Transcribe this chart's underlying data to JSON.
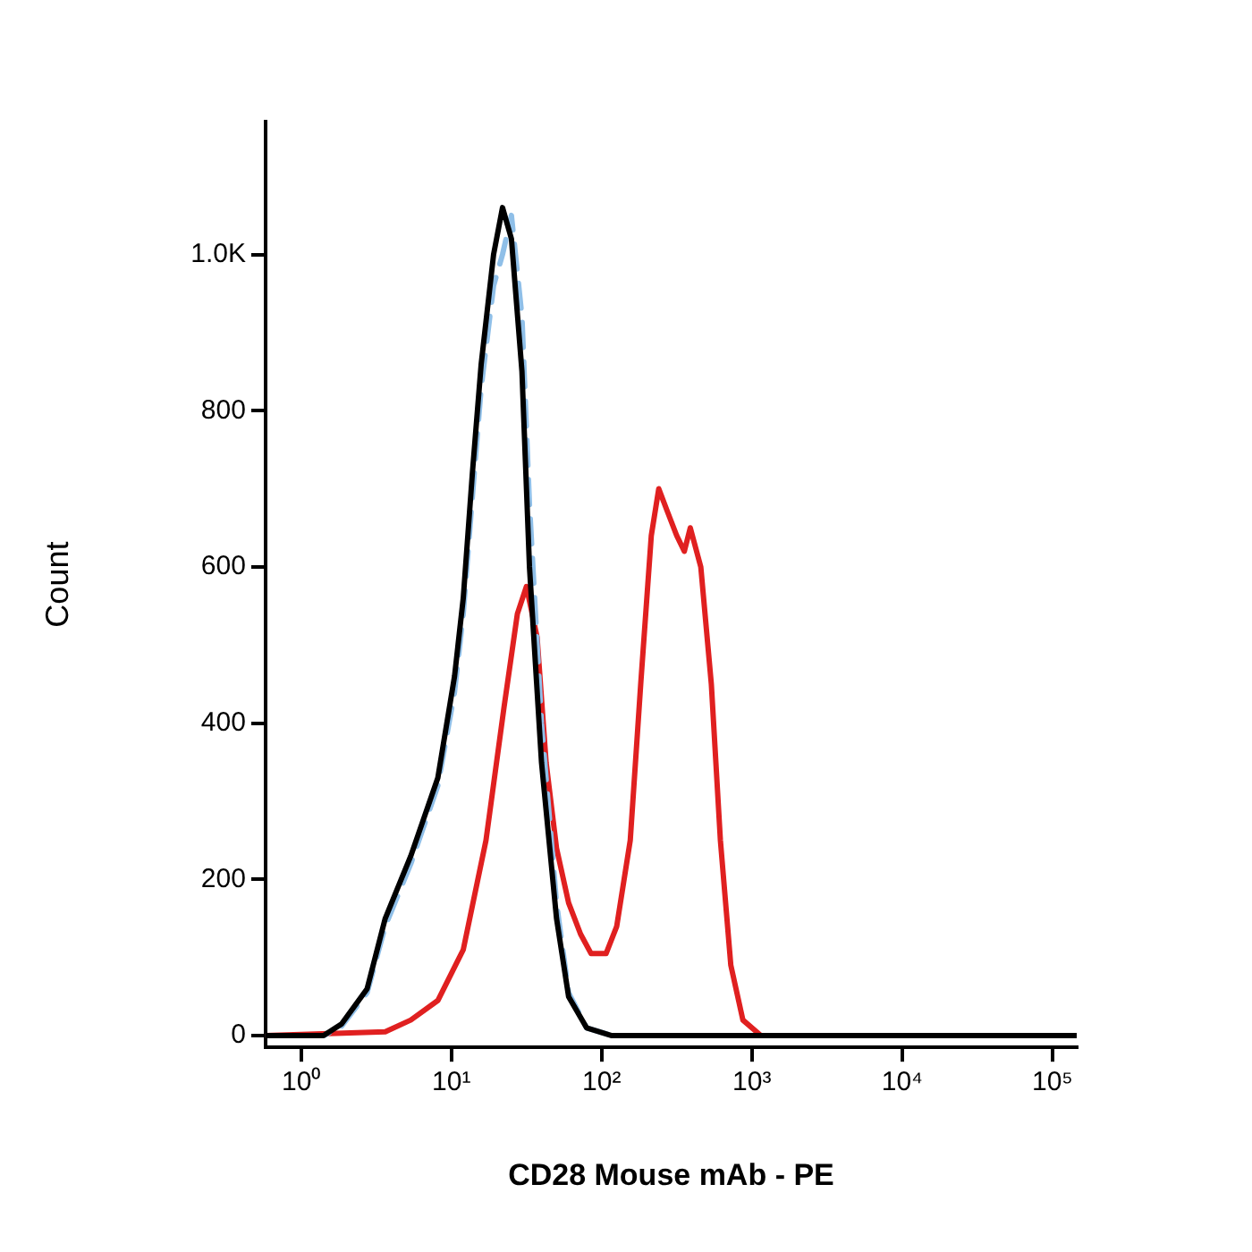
{
  "chart_data": {
    "type": "line",
    "xlabel": "CD28 Mouse mAb - PE",
    "ylabel": "Count",
    "log": "x",
    "grid": false,
    "legend": false,
    "marker": "none",
    "xlim": [
      0.58,
      145000
    ],
    "xticks": [
      {
        "value": 1,
        "label": "10⁰"
      },
      {
        "value": 10,
        "label": "10¹"
      },
      {
        "value": 100,
        "label": "10²"
      },
      {
        "value": 1000,
        "label": "10³"
      },
      {
        "value": 10000,
        "label": "10⁴"
      },
      {
        "value": 100000,
        "label": "10⁵"
      }
    ],
    "ylim": [
      -15,
      1170
    ],
    "yticks": [
      0,
      200,
      400,
      600,
      800,
      {
        "value": 1000,
        "label": "1.0K"
      }
    ],
    "series": [
      {
        "color": "#000000",
        "line_style": "solid",
        "x": [
          0.58,
          1.41,
          1.86,
          2.75,
          3.63,
          5.37,
          8.13,
          10.5,
          12.0,
          13.8,
          15.8,
          19.1,
          21.9,
          25.1,
          29.5,
          33.1,
          39.8,
          50.1,
          60.3,
          79.4,
          117,
          145000
        ],
        "values": [
          0,
          0,
          15,
          60,
          150,
          230,
          330,
          460,
          560,
          720,
          860,
          1000,
          1060,
          1020,
          850,
          600,
          350,
          150,
          50,
          10,
          0,
          0
        ]
      },
      {
        "color": "#8fbfe8",
        "line_style": "dashed",
        "x": [
          0.58,
          1.41,
          1.86,
          2.75,
          3.63,
          5.37,
          8.13,
          10.5,
          12.0,
          13.8,
          15.8,
          19.1,
          21.9,
          25.1,
          29.5,
          33.1,
          39.8,
          50.1,
          60.3,
          79.4,
          117,
          145000
        ],
        "values": [
          0,
          0,
          12,
          55,
          140,
          220,
          320,
          440,
          540,
          690,
          830,
          960,
          1000,
          1050,
          920,
          680,
          400,
          170,
          55,
          10,
          0,
          0
        ]
      },
      {
        "color": "#e02020",
        "line_style": "solid",
        "x": [
          0.58,
          3.63,
          5.37,
          8.13,
          12.0,
          17.0,
          22.4,
          27.5,
          31.6,
          37.2,
          42.7,
          50.1,
          60.3,
          72.4,
          85.1,
          107,
          126,
          155,
          182,
          214,
          240,
          275,
          316,
          355,
          389,
          457,
          537,
          617,
          724,
          871,
          1148,
          145000
        ],
        "values": [
          0,
          5,
          20,
          45,
          110,
          250,
          420,
          540,
          575,
          510,
          350,
          240,
          170,
          130,
          105,
          105,
          140,
          250,
          450,
          640,
          700,
          670,
          640,
          620,
          650,
          600,
          450,
          250,
          90,
          20,
          0,
          0
        ]
      }
    ]
  }
}
